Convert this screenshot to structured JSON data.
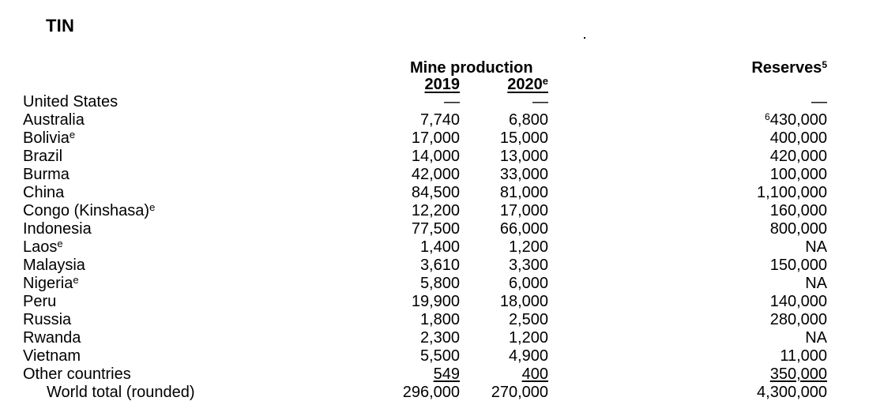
{
  "title": "TIN",
  "headers": {
    "mine_production": "Mine production",
    "year1": "2019",
    "year2": "2020",
    "year2_sup": "e",
    "reserves": "Reserves",
    "reserves_sup": "5"
  },
  "rows": [
    {
      "country": "United States",
      "sup": "",
      "y2019": "—",
      "y2020": "—",
      "res_sup": "",
      "reserves": "—"
    },
    {
      "country": "Australia",
      "sup": "",
      "y2019": "7,740",
      "y2020": "6,800",
      "res_sup": "6",
      "reserves": "430,000"
    },
    {
      "country": "Bolivia",
      "sup": "e",
      "y2019": "17,000",
      "y2020": "15,000",
      "res_sup": "",
      "reserves": "400,000"
    },
    {
      "country": "Brazil",
      "sup": "",
      "y2019": "14,000",
      "y2020": "13,000",
      "res_sup": "",
      "reserves": "420,000"
    },
    {
      "country": "Burma",
      "sup": "",
      "y2019": "42,000",
      "y2020": "33,000",
      "res_sup": "",
      "reserves": "100,000"
    },
    {
      "country": "China",
      "sup": "",
      "y2019": "84,500",
      "y2020": "81,000",
      "res_sup": "",
      "reserves": "1,100,000"
    },
    {
      "country": "Congo (Kinshasa)",
      "sup": "e",
      "y2019": "12,200",
      "y2020": "17,000",
      "res_sup": "",
      "reserves": "160,000"
    },
    {
      "country": "Indonesia",
      "sup": "",
      "y2019": "77,500",
      "y2020": "66,000",
      "res_sup": "",
      "reserves": "800,000"
    },
    {
      "country": "Laos",
      "sup": "e",
      "y2019": "1,400",
      "y2020": "1,200",
      "res_sup": "",
      "reserves": "NA"
    },
    {
      "country": "Malaysia",
      "sup": "",
      "y2019": "3,610",
      "y2020": "3,300",
      "res_sup": "",
      "reserves": "150,000"
    },
    {
      "country": "Nigeria",
      "sup": "e",
      "y2019": "5,800",
      "y2020": "6,000",
      "res_sup": "",
      "reserves": "NA"
    },
    {
      "country": "Peru",
      "sup": "",
      "y2019": "19,900",
      "y2020": "18,000",
      "res_sup": "",
      "reserves": "140,000"
    },
    {
      "country": "Russia",
      "sup": "",
      "y2019": "1,800",
      "y2020": "2,500",
      "res_sup": "",
      "reserves": "280,000"
    },
    {
      "country": "Rwanda",
      "sup": "",
      "y2019": "2,300",
      "y2020": "1,200",
      "res_sup": "",
      "reserves": "NA"
    },
    {
      "country": "Vietnam",
      "sup": "",
      "y2019": "5,500",
      "y2020": "4,900",
      "res_sup": "",
      "reserves": "11,000"
    },
    {
      "country": "Other countries",
      "sup": "",
      "y2019": "549",
      "y2020": "400",
      "res_sup": "",
      "reserves": "350,000"
    }
  ],
  "total": {
    "label": "World total (rounded)",
    "y2019": "296,000",
    "y2020": "270,000",
    "reserves": "4,300,000"
  }
}
